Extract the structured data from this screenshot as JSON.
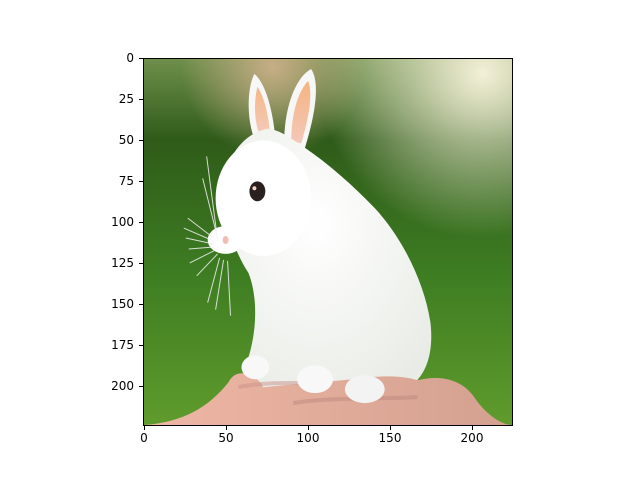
{
  "figure": {
    "image_content": "photo-of-white-rabbit-sitting-on-hand",
    "x_ticks": [
      "0",
      "50",
      "100",
      "150",
      "200"
    ],
    "y_ticks": [
      "0",
      "25",
      "50",
      "75",
      "100",
      "125",
      "150",
      "175",
      "200"
    ]
  },
  "colors": {
    "background_green": "#4f8a2c",
    "rabbit_white": "#f7f7f7",
    "ear_pink": "#f3b08e",
    "skin": "#e8b7a3"
  }
}
